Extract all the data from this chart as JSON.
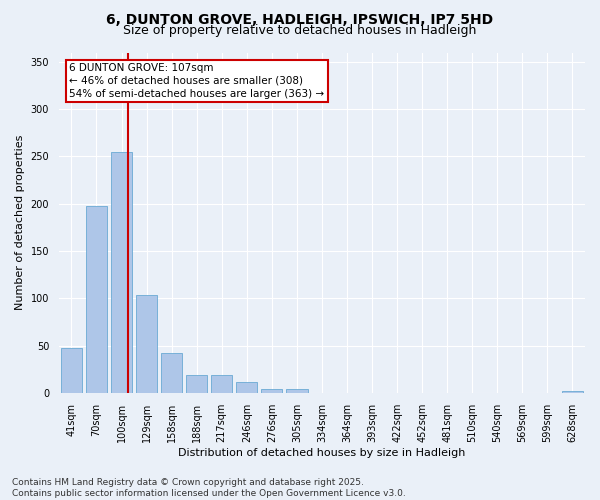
{
  "title_line1": "6, DUNTON GROVE, HADLEIGH, IPSWICH, IP7 5HD",
  "title_line2": "Size of property relative to detached houses in Hadleigh",
  "xlabel": "Distribution of detached houses by size in Hadleigh",
  "ylabel": "Number of detached properties",
  "categories": [
    "41sqm",
    "70sqm",
    "100sqm",
    "129sqm",
    "158sqm",
    "188sqm",
    "217sqm",
    "246sqm",
    "276sqm",
    "305sqm",
    "334sqm",
    "364sqm",
    "393sqm",
    "422sqm",
    "452sqm",
    "481sqm",
    "510sqm",
    "540sqm",
    "569sqm",
    "599sqm",
    "628sqm"
  ],
  "values": [
    47,
    198,
    255,
    104,
    42,
    19,
    19,
    11,
    4,
    4,
    0,
    0,
    0,
    0,
    0,
    0,
    0,
    0,
    0,
    0,
    2
  ],
  "bar_color": "#aec6e8",
  "bar_edgecolor": "#6aaad4",
  "vline_color": "#cc0000",
  "annotation_text": "6 DUNTON GROVE: 107sqm\n← 46% of detached houses are smaller (308)\n54% of semi-detached houses are larger (363) →",
  "annotation_box_facecolor": "#ffffff",
  "annotation_box_edgecolor": "#cc0000",
  "ylim": [
    0,
    360
  ],
  "yticks": [
    0,
    50,
    100,
    150,
    200,
    250,
    300,
    350
  ],
  "background_color": "#eaf0f8",
  "grid_color": "#ffffff",
  "footer_text": "Contains HM Land Registry data © Crown copyright and database right 2025.\nContains public sector information licensed under the Open Government Licence v3.0.",
  "title_fontsize": 10,
  "subtitle_fontsize": 9,
  "axis_label_fontsize": 8,
  "tick_fontsize": 7,
  "annotation_fontsize": 7.5,
  "footer_fontsize": 6.5
}
